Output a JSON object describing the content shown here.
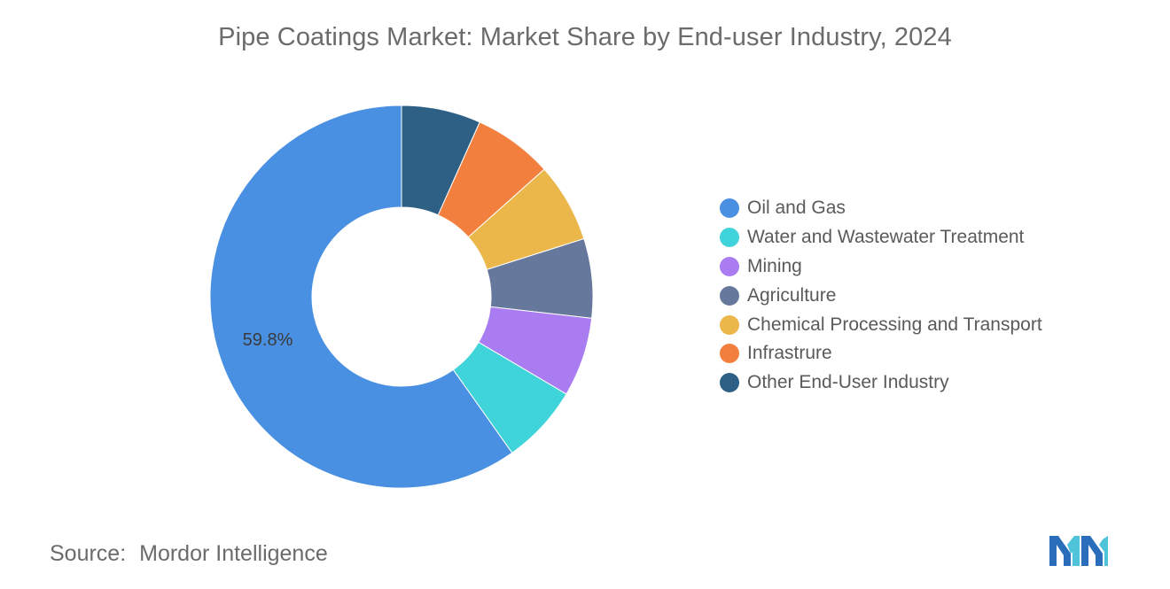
{
  "title": "Pipe Coatings Market: Market Share by End-user Industry, 2024",
  "chart_data": {
    "type": "pie",
    "donut": true,
    "title": "Pipe Coatings Market: Market Share by End-user Industry, 2024",
    "categories": [
      "Oil and Gas",
      "Water and Wastewater Treatment",
      "Mining",
      "Agriculture",
      "Chemical Processing and Transport",
      "Infrastrure",
      "Other End-User Industry"
    ],
    "values": [
      59.8,
      6.7,
      6.7,
      6.7,
      6.7,
      6.7,
      6.7
    ],
    "colors": [
      "#4a90e2",
      "#3fd3da",
      "#a97cf2",
      "#66799c",
      "#ebb74a",
      "#f27f3d",
      "#2e5f85"
    ],
    "data_labels": [
      {
        "category": "Oil and Gas",
        "text": "59.8%"
      }
    ],
    "legend_position": "right"
  },
  "source": {
    "label": "Source:",
    "value": "Mordor Intelligence"
  },
  "logo": {
    "icon": "mordor-intelligence-logo-icon",
    "colors": [
      "#2a6ebb",
      "#4fc3d9"
    ]
  }
}
